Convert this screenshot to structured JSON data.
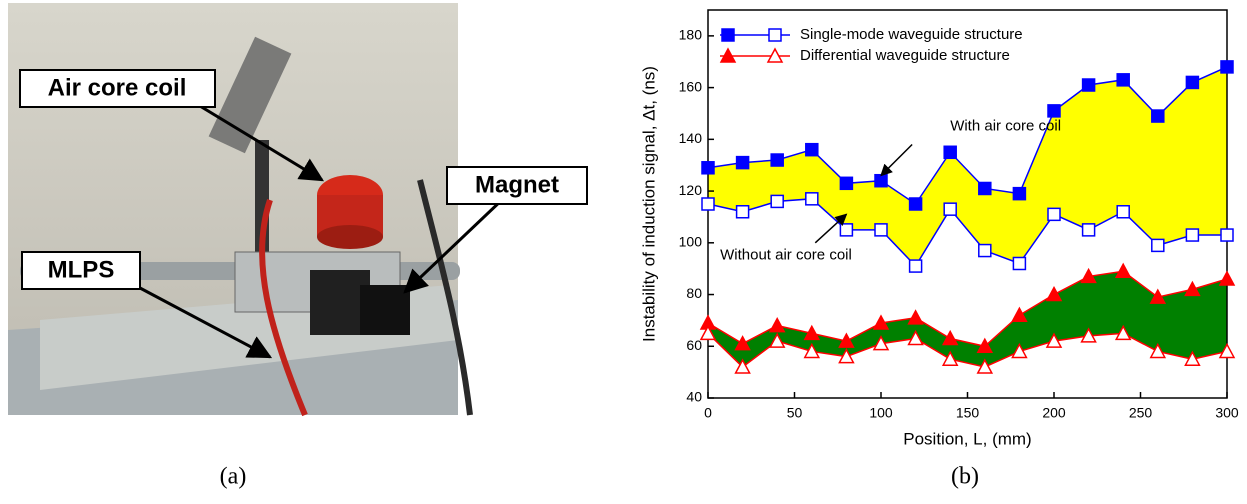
{
  "photo": {
    "labels": [
      "Air core coil",
      "Magnet",
      "MLPS"
    ],
    "caption": "(a)"
  },
  "chart_caption": "(b)",
  "chart_data": {
    "type": "line",
    "x_label": "Position, L, (mm)",
    "y_label": "Instability of induction signal, Δt, (ns)",
    "x": [
      0,
      20,
      40,
      60,
      80,
      100,
      120,
      140,
      160,
      180,
      200,
      220,
      240,
      260,
      280,
      300
    ],
    "xlim": [
      0,
      300
    ],
    "xticks": [
      0,
      50,
      100,
      150,
      200,
      250,
      300
    ],
    "ylim": [
      40,
      190
    ],
    "yticks": [
      40,
      60,
      80,
      100,
      120,
      140,
      160,
      180
    ],
    "legend": "upper left",
    "series": [
      {
        "name": "Single-mode waveguide structure",
        "color": "#0000ff",
        "marker": "square",
        "fill": "#ffff00",
        "values": [
          129,
          131,
          132,
          136,
          123,
          124,
          115,
          135,
          121,
          119,
          151,
          161,
          163,
          149,
          162,
          168
        ],
        "values_without": [
          115,
          112,
          116,
          117,
          105,
          105,
          91,
          113,
          97,
          92,
          111,
          105,
          112,
          99,
          103,
          103
        ]
      },
      {
        "name": "Differential waveguide structure",
        "color": "#ff0000",
        "marker": "triangle",
        "fill": "#008000",
        "values": [
          69,
          61,
          68,
          65,
          62,
          69,
          71,
          63,
          60,
          72,
          80,
          87,
          89,
          79,
          82,
          86
        ],
        "values_without": [
          65,
          52,
          62,
          58,
          56,
          61,
          63,
          55,
          52,
          58,
          62,
          64,
          65,
          58,
          55,
          58
        ]
      }
    ],
    "annotations": [
      "With air core coil",
      "Without air core coil"
    ]
  }
}
